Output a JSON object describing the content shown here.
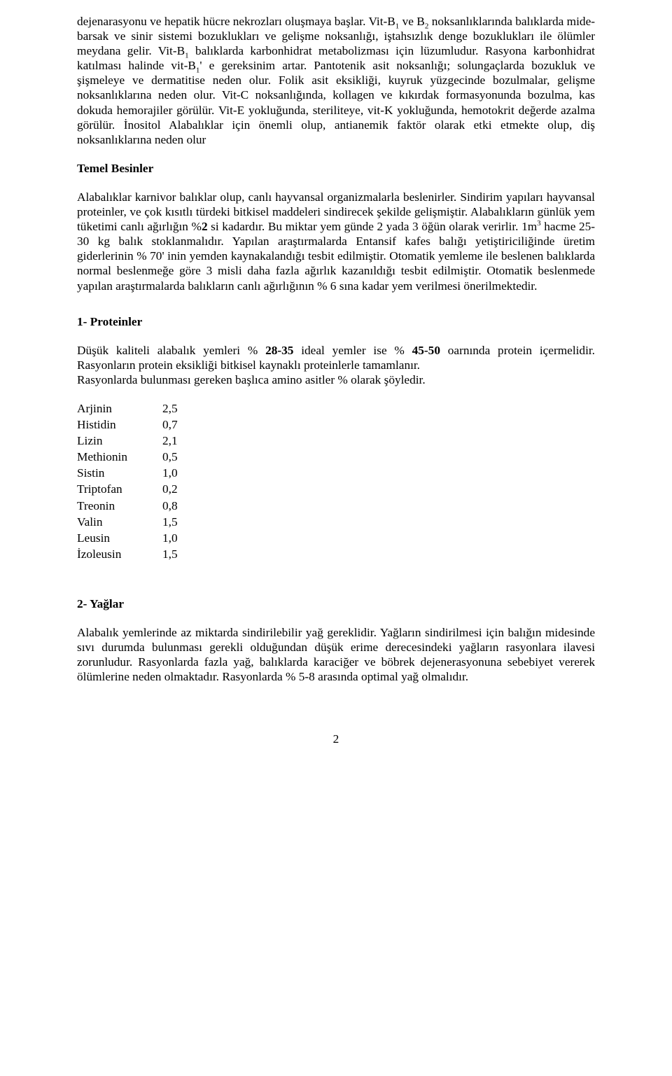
{
  "para1": {
    "seg1": "dejenarasyonu  ve hepatik hücre nekrozları oluşmaya başlar.  Vit-B",
    "seg2": " ve B",
    "seg3": "  noksanlıklarında balıklarda  mide-barsak ve sinir sistemi bozuklukları ve gelişme noksanlığı, iştahsızlık denge bozuklukları ile ölümler meydana gelir.  Vit-B",
    "seg4": " balıklarda karbonhidrat metabolizması için lüzumludur.  Rasyona karbonhidrat katılması halinde vit-B",
    "seg5": "' e gereksinim artar. Pantotenik asit noksanlığı;  solungaçlarda bozukluk ve şişmeleye  ve dermatitise neden olur. Folik asit eksikliği, kuyruk yüzgecinde bozulmalar,  gelişme noksanlıklarına neden olur. Vit-C noksanlığında, kollagen ve kıkırdak formasyonunda bozulma,  kas dokuda hemorajiler görülür.   Vit-E yokluğunda, steriliteye,   vit-K yokluğunda, hemotokrit değerde azalma görülür. İnositol Alabalıklar için önemli olup,  antianemik faktör olarak etki etmekte olup, diş noksanlıklarına neden olur",
    "sub_b1": "1",
    "sub_b2": "2",
    "sub_b1b": "1",
    "sub_b1c": "1"
  },
  "heading_temel": "Temel Besinler",
  "para2": {
    "seg1": "Alabalıklar karnivor balıklar olup, canlı hayvansal organizmalarla beslenirler. Sindirim yapıları hayvansal proteinler, ve çok kısıtlı türdeki bitkisel maddeleri sindirecek şekilde gelişmiştir. Alabalıkların günlük yem tüketimi canlı ağırlığın %",
    "bold2": "2",
    "seg2": " si kadardır. Bu miktar yem günde 2 yada 3 öğün olarak verirlir. 1m",
    "sup3": "3",
    "seg3": " hacme 25-30 kg balık stoklanmalıdır. Yapılan araştırmalarda Entansif kafes balığı yetiştiriciliğinde üretim giderlerinin % 70' inin yemden kaynakalandığı tesbit edilmiştir. Otomatik yemleme ile beslenen balıklarda normal beslenmeğe göre 3 misli daha fazla ağırlık kazanıldığı tesbit edilmiştir. Otomatik beslenmede yapılan araştırmalarda balıkların canlı ağırlığının % 6 sına kadar yem verilmesi önerilmektedir."
  },
  "heading_proteinler": "1- Proteinler",
  "para3": {
    "seg1": "Düşük kaliteli alabalık yemleri % ",
    "bold2835": "28-35",
    "seg2": " ideal yemler ise % ",
    "bold4550": "45-50",
    "seg3": " oarnında protein içermelidir. Rasyonların protein eksikliği bitkisel kaynaklı proteinlerle  tamamlanır.",
    "line2": "Rasyonlarda bulunması gereken başlıca amino asitler % olarak şöyledir."
  },
  "amino_acids": [
    {
      "name": "Arjinin",
      "value": "2,5"
    },
    {
      "name": "Histidin",
      "value": "0,7"
    },
    {
      "name": "Lizin",
      "value": "2,1"
    },
    {
      "name": "Methionin",
      "value": "0,5"
    },
    {
      "name": "Sistin",
      "value": "1,0"
    },
    {
      "name": "Triptofan",
      "value": "0,2"
    },
    {
      "name": "Treonin",
      "value": "0,8"
    },
    {
      "name": "Valin",
      "value": "1,5"
    },
    {
      "name": "Leusin",
      "value": "1,0"
    },
    {
      "name": "İzoleusin",
      "value": "1,5"
    }
  ],
  "heading_yaglar": "2- Yağlar",
  "para4": "Alabalık yemlerinde az miktarda sindirilebilir yağ gereklidir.  Yağların sindirilmesi için balığın midesinde sıvı durumda bulunması gerekli olduğundan düşük erime derecesindeki yağların rasyonlara ilavesi zorunludur.  Rasyonlarda fazla yağ, balıklarda karaciğer ve böbrek dejenerasyonuna sebebiyet vererek ölümlerine neden olmaktadır.  Rasyonlarda % 5-8 arasında optimal yağ olmalıdır.",
  "page_number": "2"
}
